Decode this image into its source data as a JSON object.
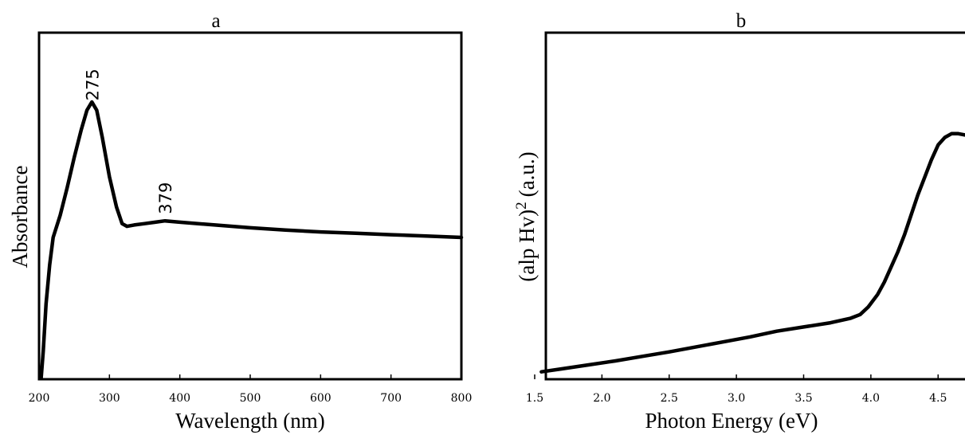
{
  "chart_data": [
    {
      "type": "line",
      "panel_label": "a",
      "xlabel": "Wavelength (nm)",
      "ylabel": "Absorbance",
      "xlim": [
        200,
        800
      ],
      "ylim": [
        0,
        1
      ],
      "x_ticks": [
        200,
        300,
        400,
        500,
        600,
        700,
        800
      ],
      "y_ticks_shown": false,
      "annotations": [
        {
          "text": "275",
          "x": 275,
          "y": 0.97
        },
        {
          "text": "379",
          "x": 379,
          "y": 0.56
        }
      ],
      "series": [
        {
          "x": [
            203,
            206,
            210,
            215,
            220,
            230,
            240,
            250,
            260,
            268,
            275,
            282,
            290,
            300,
            310,
            318,
            325,
            335,
            350,
            365,
            379,
            400,
            450,
            500,
            550,
            600,
            650,
            700,
            750,
            800
          ],
          "y": [
            0.0,
            0.1,
            0.27,
            0.41,
            0.51,
            0.59,
            0.69,
            0.8,
            0.9,
            0.97,
            1.0,
            0.97,
            0.87,
            0.73,
            0.62,
            0.56,
            0.55,
            0.555,
            0.56,
            0.565,
            0.57,
            0.565,
            0.555,
            0.545,
            0.537,
            0.53,
            0.525,
            0.52,
            0.515,
            0.51
          ]
        }
      ]
    },
    {
      "type": "line",
      "panel_label": "b",
      "xlabel": "Photon Energy (eV)",
      "ylabel_main": "(alp Hv)",
      "ylabel_sup": "2",
      "ylabel_units": "(a.u.)",
      "xlim": [
        1.5,
        4.7
      ],
      "ylim": [
        0,
        1
      ],
      "x_ticks": [
        "1.5",
        "2.0",
        "2.5",
        "3.0",
        "3.5",
        "4.0",
        "4.5"
      ],
      "y_ticks_shown": false,
      "series": [
        {
          "x": [
            1.55,
            1.7,
            1.9,
            2.1,
            2.3,
            2.5,
            2.7,
            2.9,
            3.1,
            3.3,
            3.5,
            3.7,
            3.85,
            3.92,
            3.98,
            4.05,
            4.1,
            4.15,
            4.2,
            4.25,
            4.3,
            4.35,
            4.4,
            4.45,
            4.5,
            4.55,
            4.6,
            4.65,
            4.7
          ],
          "y": [
            0.02,
            0.032,
            0.048,
            0.064,
            0.082,
            0.1,
            0.12,
            0.14,
            0.16,
            0.183,
            0.2,
            0.217,
            0.235,
            0.25,
            0.28,
            0.33,
            0.38,
            0.44,
            0.5,
            0.57,
            0.65,
            0.73,
            0.8,
            0.87,
            0.93,
            0.96,
            0.975,
            0.975,
            0.97
          ]
        }
      ]
    }
  ]
}
